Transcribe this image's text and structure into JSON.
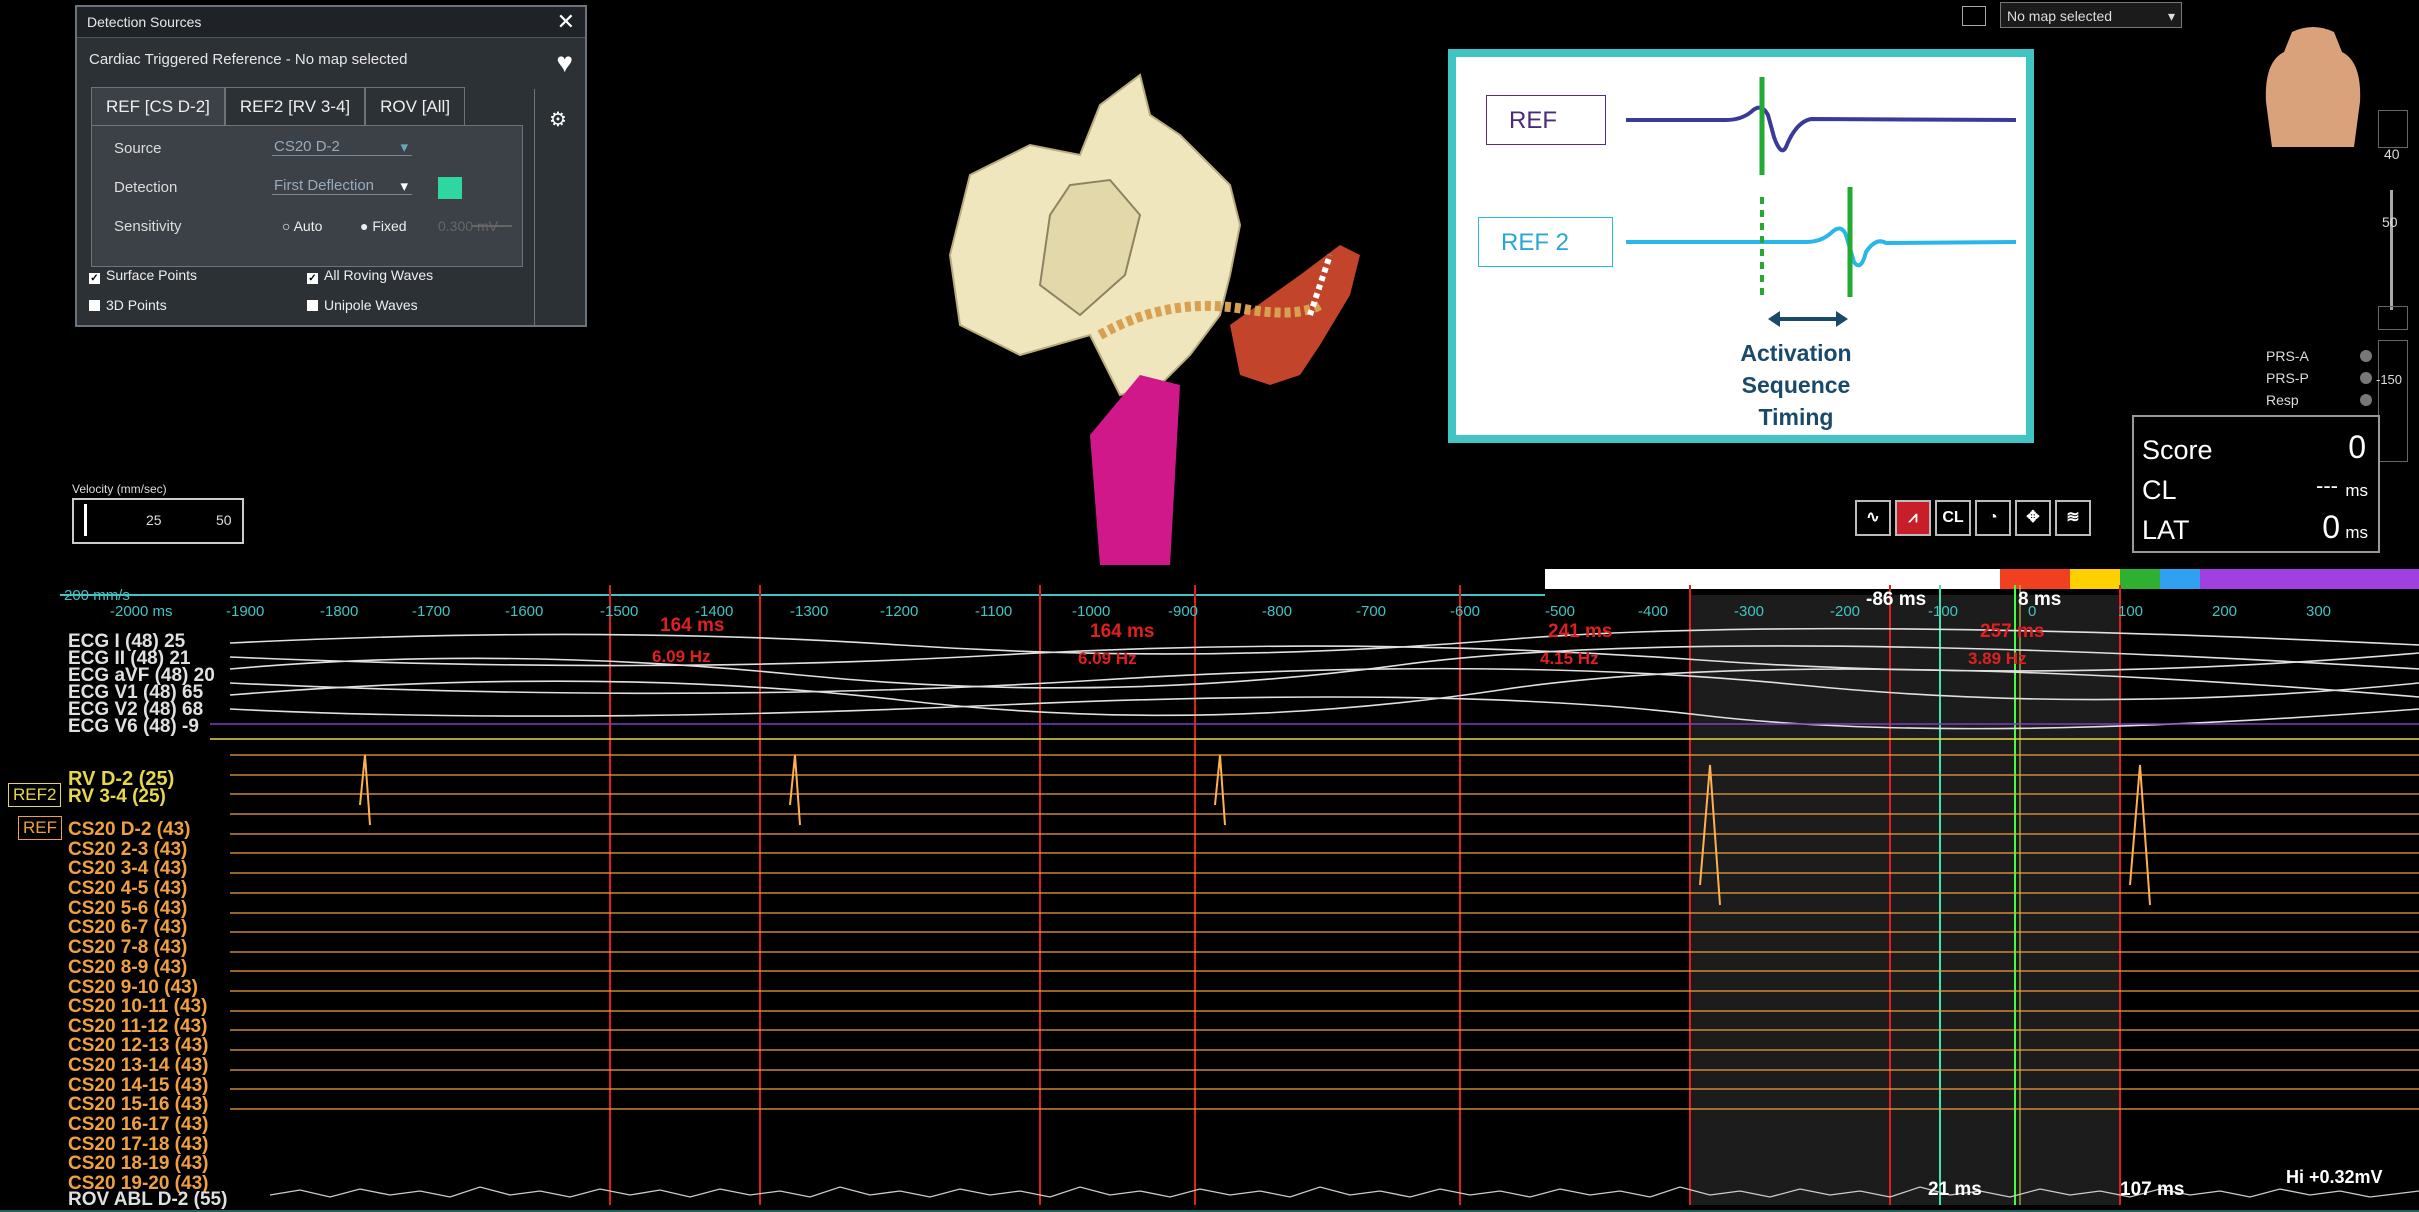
{
  "detection_panel": {
    "title": "Detection Sources",
    "subtitle": "Cardiac Triggered Reference  -  No map selected",
    "tabs": [
      "REF [CS D-2]",
      "REF2 [RV 3-4]",
      "ROV [All]"
    ],
    "source_label": "Source",
    "source_value": "CS20 D-2",
    "detection_label": "Detection",
    "detection_value": "First Deflection",
    "sensitivity_label": "Sensitivity",
    "auto_label": "Auto",
    "fixed_label": "Fixed",
    "fixed_value": "0.300",
    "fixed_unit": "mV",
    "surface_points": "Surface Points",
    "all_roving": "All Roving Waves",
    "points_3d": "3D Points",
    "unipole": "Unipole Waves"
  },
  "velocity": {
    "label": "Velocity (mm/sec)",
    "v1": "25",
    "v2": "50"
  },
  "map_select": "No map selected",
  "inset": {
    "ref": "REF",
    "ref2": "REF 2",
    "caption_1": "Activation",
    "caption_2": "Sequence",
    "caption_3": "Timing"
  },
  "right_panel": {
    "scale_40": "40",
    "scale_50": "50",
    "scale_neg150": "-150",
    "prs_a": "PRS-A",
    "prs_p": "PRS-P",
    "resp": "Resp"
  },
  "score": {
    "score_label": "Score",
    "score_value": "0",
    "cl_label": "CL",
    "cl_value": "---",
    "cl_unit": "ms",
    "lat_label": "LAT",
    "lat_value": "0",
    "lat_unit": "ms"
  },
  "toolbar": {
    "cl_label": "CL"
  },
  "timeline": {
    "speed": "200 mm/s",
    "ticks": [
      "-2000 ms",
      "-1900",
      "-1800",
      "-1700",
      "-1600",
      "-1500",
      "-1400",
      "-1300",
      "-1200",
      "-1100",
      "-1000",
      "-900",
      "-800",
      "-700",
      "-600",
      "-500",
      "-400",
      "-300",
      "-200",
      "-100",
      "0",
      "100",
      "200",
      "300"
    ],
    "m1": "-86 ms",
    "m2": "8 ms"
  },
  "intervals": [
    {
      "ms": "164 ms",
      "hz": "6.09 Hz"
    },
    {
      "ms": "164 ms",
      "hz": "6.09 Hz"
    },
    {
      "ms": "241 ms",
      "hz": "4.15 Hz"
    },
    {
      "ms": "257 ms",
      "hz": "3.89 Hz"
    }
  ],
  "channels": {
    "ecg": [
      "ECG I (48)  25",
      "ECG II (48)  21",
      "ECG aVF (48)  20",
      "ECG V1 (48)  65",
      "ECG V2 (48)  68",
      "ECG V6 (48)  -9"
    ],
    "rv1": "RV  D-2 (25)",
    "rv2": "RV  3-4 (25)",
    "cs": [
      "CS20  D-2 (43)",
      "CS20  2-3 (43)",
      "CS20  3-4 (43)",
      "CS20  4-5 (43)",
      "CS20  5-6 (43)",
      "CS20  6-7 (43)",
      "CS20  7-8 (43)",
      "CS20  8-9 (43)",
      "CS20  9-10 (43)",
      "CS20  10-11 (43)",
      "CS20  11-12 (43)",
      "CS20  12-13 (43)",
      "CS20  13-14 (43)",
      "CS20  14-15 (43)",
      "CS20  15-16 (43)",
      "CS20  16-17 (43)",
      "CS20  17-18 (43)",
      "CS20  18-19 (43)",
      "CS20  19-20 (43)"
    ],
    "rov": "ROV ABL  D-2 (55)"
  },
  "tags": {
    "ref2": "REF2",
    "ref": "REF"
  },
  "bottom": {
    "m21": "21 ms",
    "m107": "107 ms",
    "hi": "Hi +0.32mV"
  },
  "colors": {
    "ecg": "#e0e0e0",
    "rv": "#e6d84a",
    "cs": "#f0a040",
    "ref_line": "#e01e1e",
    "cyan": "#40c4c4"
  }
}
